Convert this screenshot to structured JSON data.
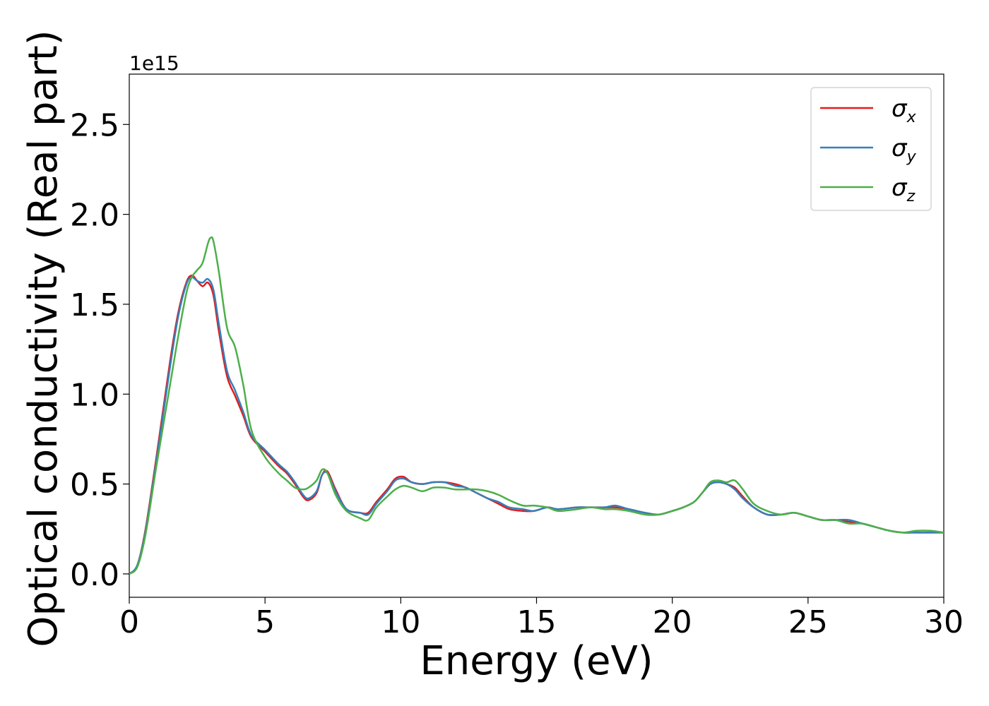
{
  "chart_data": {
    "type": "line",
    "title": "",
    "xlabel": "Energy (eV)",
    "ylabel": "Optical conductivity (Real part)",
    "y_offset_label": "1e15",
    "xlim": [
      0,
      30
    ],
    "ylim": [
      -0.13,
      2.78
    ],
    "y_scale_factor": 1000000000000000.0,
    "xticks": [
      0,
      5,
      10,
      15,
      20,
      25,
      30
    ],
    "xtick_labels": [
      "0",
      "5",
      "10",
      "15",
      "20",
      "25",
      "30"
    ],
    "yticks": [
      0.0,
      0.5,
      1.0,
      1.5,
      2.0,
      2.5
    ],
    "ytick_labels": [
      "0.0",
      "0.5",
      "1.0",
      "1.5",
      "2.0",
      "2.5"
    ],
    "grid": false,
    "legend_position": "top-right",
    "series": [
      {
        "name": "σx",
        "symbol": "σ",
        "subscript": "x",
        "color": "#e41a1c",
        "x": [
          0,
          0.3,
          0.6,
          1.0,
          1.5,
          1.8,
          2.1,
          2.3,
          2.5,
          2.7,
          2.9,
          3.1,
          3.3,
          3.6,
          3.9,
          4.2,
          4.5,
          5.0,
          5.5,
          5.8,
          6.1,
          6.4,
          6.6,
          6.9,
          7.1,
          7.3,
          7.6,
          8.0,
          8.5,
          8.8,
          9.1,
          9.5,
          9.8,
          10.1,
          10.4,
          10.8,
          11.2,
          11.6,
          12.0,
          12.4,
          12.8,
          13.2,
          13.6,
          14.0,
          14.5,
          14.9,
          15.4,
          15.8,
          16.5,
          17.0,
          17.5,
          17.9,
          18.4,
          19.0,
          19.5,
          20.0,
          20.4,
          20.8,
          21.1,
          21.4,
          21.7,
          22.0,
          22.3,
          22.6,
          23.0,
          23.5,
          24.0,
          24.5,
          25.0,
          25.5,
          26.0,
          26.5,
          27.0,
          27.5,
          28.0,
          28.5,
          29.0,
          29.5,
          30.0
        ],
        "y": [
          0.0,
          0.05,
          0.25,
          0.65,
          1.18,
          1.45,
          1.62,
          1.66,
          1.63,
          1.6,
          1.62,
          1.55,
          1.35,
          1.1,
          0.99,
          0.88,
          0.76,
          0.68,
          0.6,
          0.56,
          0.5,
          0.43,
          0.41,
          0.45,
          0.55,
          0.57,
          0.47,
          0.36,
          0.34,
          0.34,
          0.4,
          0.47,
          0.53,
          0.54,
          0.51,
          0.5,
          0.51,
          0.51,
          0.5,
          0.48,
          0.45,
          0.42,
          0.39,
          0.36,
          0.35,
          0.35,
          0.37,
          0.36,
          0.37,
          0.37,
          0.37,
          0.37,
          0.36,
          0.34,
          0.33,
          0.35,
          0.37,
          0.4,
          0.45,
          0.5,
          0.51,
          0.5,
          0.48,
          0.43,
          0.37,
          0.33,
          0.33,
          0.34,
          0.32,
          0.3,
          0.3,
          0.29,
          0.28,
          0.26,
          0.24,
          0.23,
          0.23,
          0.23,
          0.23
        ]
      },
      {
        "name": "σy",
        "symbol": "σ",
        "subscript": "y",
        "color": "#377eb8",
        "x": [
          0,
          0.3,
          0.6,
          1.0,
          1.5,
          1.8,
          2.1,
          2.3,
          2.5,
          2.7,
          2.9,
          3.1,
          3.3,
          3.6,
          3.9,
          4.2,
          4.5,
          5.0,
          5.5,
          5.8,
          6.1,
          6.4,
          6.6,
          6.9,
          7.1,
          7.3,
          7.6,
          8.0,
          8.5,
          8.8,
          9.1,
          9.5,
          9.8,
          10.1,
          10.4,
          10.8,
          11.2,
          11.6,
          12.0,
          12.4,
          12.8,
          13.2,
          13.6,
          14.0,
          14.5,
          14.9,
          15.4,
          15.8,
          16.5,
          17.0,
          17.5,
          17.9,
          18.4,
          19.0,
          19.5,
          20.0,
          20.4,
          20.8,
          21.1,
          21.4,
          21.7,
          22.0,
          22.3,
          22.6,
          23.0,
          23.5,
          24.0,
          24.5,
          25.0,
          25.5,
          26.0,
          26.5,
          27.0,
          27.5,
          28.0,
          28.5,
          29.0,
          29.5,
          30.0
        ],
        "y": [
          0.0,
          0.05,
          0.24,
          0.63,
          1.15,
          1.43,
          1.61,
          1.65,
          1.63,
          1.62,
          1.64,
          1.58,
          1.39,
          1.13,
          1.02,
          0.9,
          0.77,
          0.69,
          0.61,
          0.57,
          0.51,
          0.44,
          0.42,
          0.46,
          0.55,
          0.56,
          0.46,
          0.36,
          0.34,
          0.33,
          0.39,
          0.46,
          0.52,
          0.53,
          0.51,
          0.5,
          0.51,
          0.51,
          0.49,
          0.48,
          0.45,
          0.42,
          0.4,
          0.37,
          0.36,
          0.35,
          0.37,
          0.36,
          0.37,
          0.37,
          0.37,
          0.38,
          0.36,
          0.34,
          0.33,
          0.35,
          0.37,
          0.4,
          0.45,
          0.5,
          0.51,
          0.5,
          0.47,
          0.42,
          0.37,
          0.33,
          0.33,
          0.34,
          0.32,
          0.3,
          0.3,
          0.3,
          0.28,
          0.26,
          0.24,
          0.23,
          0.23,
          0.23,
          0.23
        ]
      },
      {
        "name": "σz",
        "symbol": "σ",
        "subscript": "z",
        "color": "#4daf4a",
        "x": [
          0,
          0.3,
          0.6,
          1.0,
          1.5,
          1.8,
          2.1,
          2.3,
          2.5,
          2.7,
          2.9,
          3.0,
          3.1,
          3.3,
          3.6,
          3.9,
          4.2,
          4.5,
          5.0,
          5.5,
          5.8,
          6.1,
          6.4,
          6.6,
          6.9,
          7.1,
          7.3,
          7.6,
          8.0,
          8.5,
          8.8,
          9.1,
          9.5,
          9.8,
          10.1,
          10.4,
          10.8,
          11.2,
          11.6,
          12.0,
          12.4,
          12.8,
          13.2,
          13.6,
          14.0,
          14.5,
          14.9,
          15.4,
          15.8,
          16.5,
          17.0,
          17.5,
          17.9,
          18.4,
          19.0,
          19.5,
          20.0,
          20.4,
          20.8,
          21.1,
          21.4,
          21.7,
          22.0,
          22.3,
          22.6,
          23.0,
          23.5,
          24.0,
          24.5,
          25.0,
          25.5,
          26.0,
          26.5,
          27.0,
          27.5,
          28.0,
          28.5,
          29.0,
          29.5,
          30.0
        ],
        "y": [
          0.0,
          0.04,
          0.22,
          0.6,
          1.05,
          1.32,
          1.56,
          1.65,
          1.69,
          1.73,
          1.84,
          1.87,
          1.85,
          1.68,
          1.37,
          1.26,
          1.05,
          0.8,
          0.65,
          0.56,
          0.52,
          0.48,
          0.47,
          0.48,
          0.52,
          0.58,
          0.56,
          0.44,
          0.35,
          0.31,
          0.3,
          0.37,
          0.43,
          0.47,
          0.49,
          0.48,
          0.46,
          0.48,
          0.48,
          0.47,
          0.47,
          0.47,
          0.46,
          0.44,
          0.41,
          0.38,
          0.38,
          0.37,
          0.35,
          0.36,
          0.37,
          0.36,
          0.36,
          0.35,
          0.33,
          0.33,
          0.35,
          0.37,
          0.4,
          0.45,
          0.51,
          0.52,
          0.51,
          0.52,
          0.47,
          0.39,
          0.35,
          0.33,
          0.34,
          0.32,
          0.3,
          0.3,
          0.28,
          0.28,
          0.26,
          0.24,
          0.23,
          0.24,
          0.24,
          0.23
        ]
      }
    ]
  }
}
